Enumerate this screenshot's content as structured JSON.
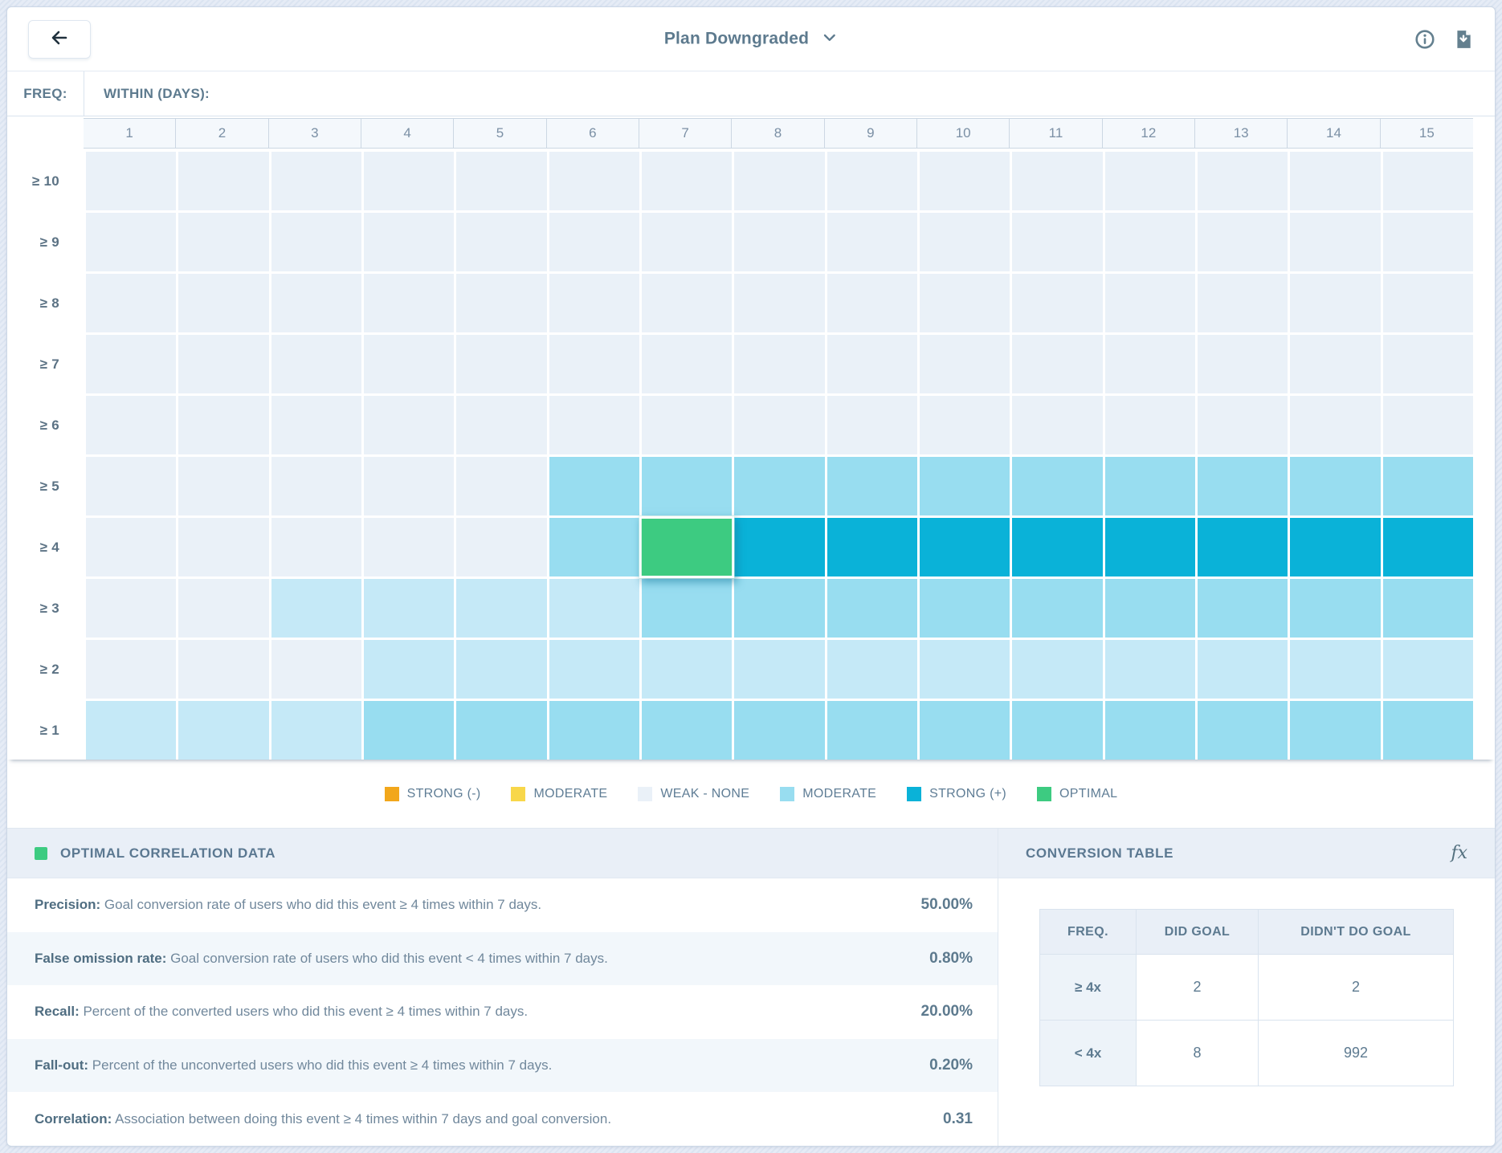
{
  "topbar": {
    "title": "Plan Downgraded",
    "back_icon": "arrow-left",
    "info_icon": "info-circle",
    "download_icon": "file-download"
  },
  "heatmap": {
    "freq_label": "FREQ:",
    "within_label": "WITHIN (DAYS):",
    "columns": [
      "1",
      "2",
      "3",
      "4",
      "5",
      "6",
      "7",
      "8",
      "9",
      "10",
      "11",
      "12",
      "13",
      "14",
      "15"
    ],
    "level_colors": {
      "w": "#eaf1f8",
      "l": "#c5e9f7",
      "m": "#98ddf0",
      "s": "#0ab2d8",
      "o": "#3dcb81"
    },
    "level_names": {
      "w": "weak-none",
      "l": "moderate-light",
      "m": "moderate",
      "s": "strong-positive",
      "o": "optimal"
    },
    "rows": [
      {
        "label": "≥ 10",
        "cells": [
          "w",
          "w",
          "w",
          "w",
          "w",
          "w",
          "w",
          "w",
          "w",
          "w",
          "w",
          "w",
          "w",
          "w",
          "w"
        ]
      },
      {
        "label": "≥ 9",
        "cells": [
          "w",
          "w",
          "w",
          "w",
          "w",
          "w",
          "w",
          "w",
          "w",
          "w",
          "w",
          "w",
          "w",
          "w",
          "w"
        ]
      },
      {
        "label": "≥ 8",
        "cells": [
          "w",
          "w",
          "w",
          "w",
          "w",
          "w",
          "w",
          "w",
          "w",
          "w",
          "w",
          "w",
          "w",
          "w",
          "w"
        ]
      },
      {
        "label": "≥ 7",
        "cells": [
          "w",
          "w",
          "w",
          "w",
          "w",
          "w",
          "w",
          "w",
          "w",
          "w",
          "w",
          "w",
          "w",
          "w",
          "w"
        ]
      },
      {
        "label": "≥ 6",
        "cells": [
          "w",
          "w",
          "w",
          "w",
          "w",
          "w",
          "w",
          "w",
          "w",
          "w",
          "w",
          "w",
          "w",
          "w",
          "w"
        ]
      },
      {
        "label": "≥ 5",
        "cells": [
          "w",
          "w",
          "w",
          "w",
          "w",
          "m",
          "m",
          "m",
          "m",
          "m",
          "m",
          "m",
          "m",
          "m",
          "m"
        ]
      },
      {
        "label": "≥ 4",
        "cells": [
          "w",
          "w",
          "w",
          "w",
          "w",
          "m",
          "o",
          "s",
          "s",
          "s",
          "s",
          "s",
          "s",
          "s",
          "s"
        ]
      },
      {
        "label": "≥ 3",
        "cells": [
          "w",
          "w",
          "l",
          "l",
          "l",
          "l",
          "m",
          "m",
          "m",
          "m",
          "m",
          "m",
          "m",
          "m",
          "m"
        ]
      },
      {
        "label": "≥ 2",
        "cells": [
          "w",
          "w",
          "w",
          "l",
          "l",
          "l",
          "l",
          "l",
          "l",
          "l",
          "l",
          "l",
          "l",
          "l",
          "l"
        ]
      },
      {
        "label": "≥ 1",
        "cells": [
          "l",
          "l",
          "l",
          "m",
          "m",
          "m",
          "m",
          "m",
          "m",
          "m",
          "m",
          "m",
          "m",
          "m",
          "m"
        ]
      }
    ],
    "selected_cell": {
      "row": "≥ 4",
      "column": "7"
    }
  },
  "legend": [
    {
      "label": "STRONG (-)",
      "color": "#f2a71b",
      "pattern": false
    },
    {
      "label": "MODERATE",
      "color": "#f8d74a",
      "pattern": false
    },
    {
      "label": "WEAK - NONE",
      "color": "#eaf1f8",
      "pattern": false
    },
    {
      "label": "MODERATE",
      "color": "#98ddf0",
      "pattern": true
    },
    {
      "label": "STRONG (+)",
      "color": "#0ab2d8",
      "pattern": false
    },
    {
      "label": "OPTIMAL",
      "color": "#3dcb81",
      "pattern": false
    }
  ],
  "optimal_panel": {
    "title": "OPTIMAL CORRELATION DATA",
    "swatch_color": "#3dcb81",
    "rows": [
      {
        "label": "Precision:",
        "desc": " Goal conversion rate of users who did this event ≥ 4 times within 7 days.",
        "value": "50.00%"
      },
      {
        "label": "False omission rate:",
        "desc": " Goal conversion rate of users who did this event < 4 times within 7 days.",
        "value": "0.80%"
      },
      {
        "label": "Recall:",
        "desc": " Percent of the converted users who did this event ≥ 4 times within 7 days.",
        "value": "20.00%"
      },
      {
        "label": "Fall-out:",
        "desc": " Percent of the unconverted users who did this event ≥ 4 times within 7 days.",
        "value": "0.20%"
      },
      {
        "label": "Correlation:",
        "desc": " Association between doing this event ≥ 4 times within 7 days and goal conversion.",
        "value": "0.31"
      }
    ]
  },
  "conversion_panel": {
    "title": "CONVERSION TABLE",
    "fx_label": "fx",
    "headers": [
      "FREQ.",
      "DID GOAL",
      "DIDN'T DO GOAL"
    ],
    "rows": [
      {
        "freq": "≥ 4x",
        "did": "2",
        "didnt": "2"
      },
      {
        "freq": "< 4x",
        "did": "8",
        "didnt": "992"
      }
    ]
  }
}
